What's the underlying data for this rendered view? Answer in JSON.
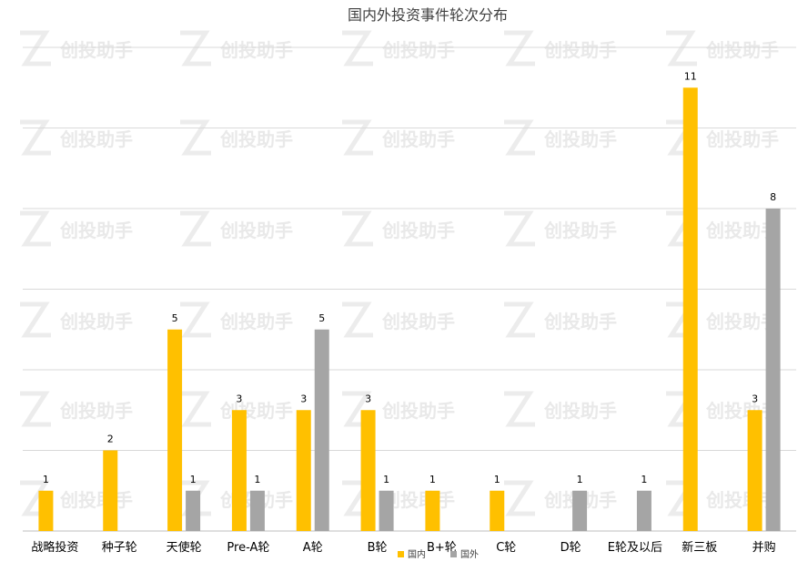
{
  "chart_data": {
    "type": "bar",
    "title": "国内外投资事件轮次分布",
    "categories": [
      "战略投资",
      "种子轮",
      "天使轮",
      "Pre-A轮",
      "A轮",
      "B轮",
      "B+轮",
      "C轮",
      "D轮",
      "E轮及以后",
      "新三板",
      "并购"
    ],
    "series": [
      {
        "name": "国内",
        "color": "#FFC000",
        "values": [
          1,
          2,
          5,
          3,
          3,
          3,
          1,
          1,
          0,
          0,
          11,
          3
        ]
      },
      {
        "name": "国外",
        "color": "#A5A5A5",
        "values": [
          0,
          0,
          1,
          1,
          5,
          1,
          0,
          0,
          1,
          1,
          0,
          8
        ]
      }
    ],
    "ylim": [
      0,
      12
    ],
    "grid": true,
    "legend_position": "bottom-center",
    "gridline_color": "#d9d9d9"
  },
  "watermark": {
    "text": "创投助手"
  }
}
